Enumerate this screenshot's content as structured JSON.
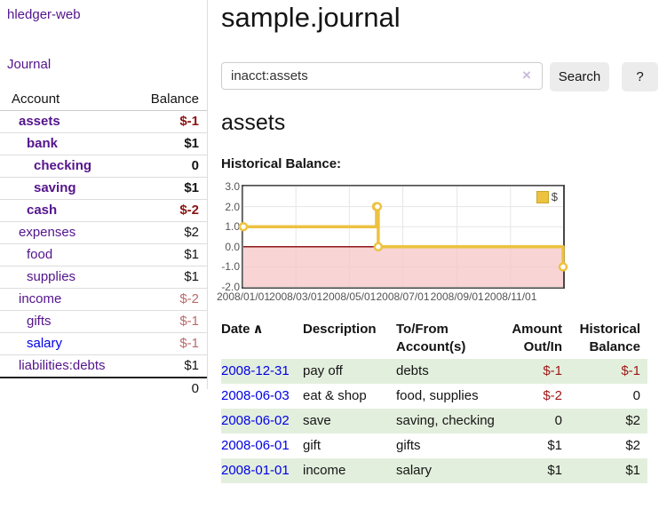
{
  "theme": {
    "purple": "#54148c",
    "link_blue": "#0000e6",
    "neg_strong": "#8b1414",
    "neg_muted": "#bc6a6a",
    "neg": "#9e1616",
    "stripe_green": "#e3efdd",
    "gold": "#edc240",
    "pink": "#f6c6c6",
    "zero_line": "#8c1717"
  },
  "sidebar": {
    "brand": "hledger-web",
    "journal_link": "Journal",
    "accounts_table": {
      "headers": {
        "account": "Account",
        "balance": "Balance"
      },
      "rows": [
        {
          "name": "assets",
          "balance": "$-1",
          "level": 0,
          "bold": true,
          "balance_color": "neg-strong"
        },
        {
          "name": "bank",
          "balance": "$1",
          "level": 1,
          "bold": true
        },
        {
          "name": "checking",
          "balance": "0",
          "level": 2,
          "bold": true
        },
        {
          "name": "saving",
          "balance": "$1",
          "level": 2,
          "bold": true
        },
        {
          "name": "cash",
          "balance": "$-2",
          "level": 1,
          "bold": true,
          "balance_color": "neg-strong"
        },
        {
          "name": "expenses",
          "balance": "$2",
          "level": 0
        },
        {
          "name": "food",
          "balance": "$1",
          "level": 1
        },
        {
          "name": "supplies",
          "balance": "$1",
          "level": 1
        },
        {
          "name": "income",
          "balance": "$-2",
          "level": 0,
          "balance_color": "neg-muted"
        },
        {
          "name": "gifts",
          "balance": "$-1",
          "level": 1,
          "balance_color": "neg-muted"
        },
        {
          "name": "salary",
          "balance": "$-1",
          "level": 1,
          "balance_color": "neg-muted",
          "link_color": "blue"
        },
        {
          "name": "liabilities:debts",
          "balance": "$1",
          "level": 0
        }
      ],
      "total": "0"
    }
  },
  "main": {
    "title": "sample.journal",
    "search": {
      "value": "inacct:assets",
      "clear_icon": "×",
      "button": "Search",
      "help_button": "?"
    },
    "account_heading": "assets",
    "chart_label": "Historical Balance:"
  },
  "chart_data": {
    "type": "line",
    "step": true,
    "series": [
      {
        "name": "$",
        "color": "#edc240",
        "points": [
          [
            "2008-01-01",
            1
          ],
          [
            "2008-06-01",
            2
          ],
          [
            "2008-06-02",
            2
          ],
          [
            "2008-06-03",
            0
          ],
          [
            "2008-12-31",
            -1
          ]
        ]
      }
    ],
    "x_range": [
      "2008-01-01",
      "2008-12-31"
    ],
    "ylim": [
      -2,
      3
    ],
    "y_ticks": [
      3,
      2,
      1,
      0,
      -1,
      -2
    ],
    "x_ticks": [
      "2008/01/01",
      "2008/03/01",
      "2008/05/01",
      "2008/07/01",
      "2008/09/01",
      "2008/11/01"
    ],
    "grid": true,
    "legend": {
      "label": "$",
      "position": "top-right"
    },
    "negative_region_shaded": true
  },
  "register": {
    "headers": {
      "date": "Date",
      "sort_icon": "∧",
      "description": "Description",
      "accounts": "To/From Account(s)",
      "amount": "Amount Out/In",
      "balance": "Historical Balance"
    },
    "rows": [
      {
        "date": "2008-12-31",
        "description": "pay off",
        "accounts": "debts",
        "amount": "$-1",
        "balance": "$-1",
        "amount_color": "neg",
        "balance_color": "neg"
      },
      {
        "date": "2008-06-03",
        "description": "eat & shop",
        "accounts": "food, supplies",
        "amount": "$-2",
        "balance": "0",
        "amount_color": "neg"
      },
      {
        "date": "2008-06-02",
        "description": "save",
        "accounts": "saving, checking",
        "amount": "0",
        "balance": "$2"
      },
      {
        "date": "2008-06-01",
        "description": "gift",
        "accounts": "gifts",
        "amount": "$1",
        "balance": "$2"
      },
      {
        "date": "2008-01-01",
        "description": "income",
        "accounts": "salary",
        "amount": "$1",
        "balance": "$1"
      }
    ]
  }
}
